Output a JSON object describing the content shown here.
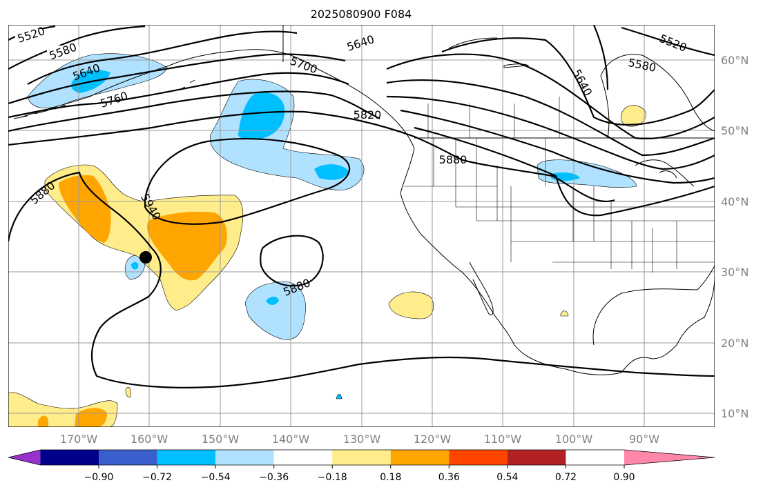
{
  "title": "2025080900 F084",
  "map": {
    "lat_labels": [
      "60°N",
      "50°N",
      "40°N",
      "30°N",
      "20°N",
      "10°N"
    ],
    "lon_labels": [
      "170°W",
      "160°W",
      "150°W",
      "140°W",
      "130°W",
      "120°W",
      "110°W",
      "100°W",
      "90°W"
    ],
    "contour_labels": [
      "5520",
      "5580",
      "5640",
      "5700",
      "5760",
      "5820",
      "5880",
      "5940",
      "5640",
      "5520",
      "5580",
      "5640",
      "5880",
      "5880"
    ],
    "contour_color": "#000000",
    "marker": "circle"
  },
  "colorbar": {
    "tick_labels": [
      "−0.90",
      "−0.72",
      "−0.54",
      "−0.36",
      "−0.18",
      "0.18",
      "0.36",
      "0.54",
      "0.72",
      "0.90"
    ],
    "colors": [
      "#9932cc",
      "#00008b",
      "#3a5fcd",
      "#00bfff",
      "#b0e2ff",
      "#ffffff",
      "#ffec8b",
      "#ffa500",
      "#ff4500",
      "#b22222",
      "#ff88aa"
    ]
  }
}
